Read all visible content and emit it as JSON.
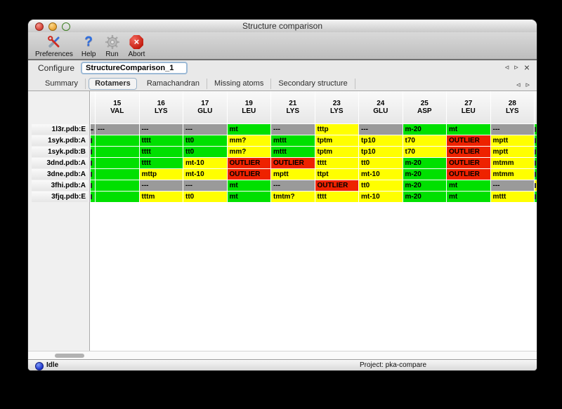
{
  "window": {
    "title": "Structure comparison"
  },
  "toolbar": {
    "items": [
      {
        "label": "Preferences",
        "icon": "tools-icon"
      },
      {
        "label": "Help",
        "icon": "help-icon"
      },
      {
        "label": "Run",
        "icon": "gear-icon"
      },
      {
        "label": "Abort",
        "icon": "abort-icon"
      }
    ]
  },
  "icons": {
    "help": "?",
    "abort_x": "×",
    "prev": "◃",
    "next": "▹",
    "close": "×"
  },
  "configure": {
    "label": "Configure",
    "value": "StructureComparison_1"
  },
  "tabs": {
    "items": [
      {
        "label": "Summary",
        "selected": false
      },
      {
        "label": "Rotamers",
        "selected": true
      },
      {
        "label": "Ramachandran",
        "selected": false
      },
      {
        "label": "Missing atoms",
        "selected": false
      },
      {
        "label": "Secondary structure",
        "selected": false
      }
    ]
  },
  "colors": {
    "green": "#00e000",
    "yellow": "#ffff00",
    "red": "#ee2200",
    "gray": "#9a9a9a"
  },
  "table": {
    "columns": [
      {
        "num": "15",
        "res": "VAL"
      },
      {
        "num": "16",
        "res": "LYS"
      },
      {
        "num": "17",
        "res": "GLU"
      },
      {
        "num": "19",
        "res": "LEU"
      },
      {
        "num": "21",
        "res": "LYS"
      },
      {
        "num": "23",
        "res": "LYS"
      },
      {
        "num": "24",
        "res": "GLU"
      },
      {
        "num": "25",
        "res": "ASP"
      },
      {
        "num": "27",
        "res": "LEU"
      },
      {
        "num": "28",
        "res": "LYS"
      }
    ],
    "rows": [
      {
        "label": "1l3r.pdb:E",
        "left_clip": "gray",
        "right_clip": "green",
        "cells": [
          {
            "v": "---",
            "c": "gray"
          },
          {
            "v": "---",
            "c": "gray"
          },
          {
            "v": "---",
            "c": "gray"
          },
          {
            "v": "mt",
            "c": "green"
          },
          {
            "v": "---",
            "c": "gray"
          },
          {
            "v": "tttp",
            "c": "yellow"
          },
          {
            "v": "---",
            "c": "gray"
          },
          {
            "v": "m-20",
            "c": "green"
          },
          {
            "v": "mt",
            "c": "green"
          },
          {
            "v": "---",
            "c": "gray"
          }
        ]
      },
      {
        "label": "1syk.pdb:A",
        "left_clip": "green",
        "right_clip": "green",
        "cells": [
          {
            "v": "",
            "c": "green"
          },
          {
            "v": "tttt",
            "c": "green"
          },
          {
            "v": "tt0",
            "c": "green"
          },
          {
            "v": "mm?",
            "c": "yellow"
          },
          {
            "v": "mttt",
            "c": "green"
          },
          {
            "v": "tptm",
            "c": "yellow"
          },
          {
            "v": "tp10",
            "c": "yellow"
          },
          {
            "v": "t70",
            "c": "yellow"
          },
          {
            "v": "OUTLIER",
            "c": "red"
          },
          {
            "v": "mptt",
            "c": "yellow"
          }
        ]
      },
      {
        "label": "1syk.pdb:B",
        "left_clip": "green",
        "right_clip": "green",
        "cells": [
          {
            "v": "",
            "c": "green"
          },
          {
            "v": "tttt",
            "c": "green"
          },
          {
            "v": "tt0",
            "c": "green"
          },
          {
            "v": "mm?",
            "c": "yellow"
          },
          {
            "v": "mttt",
            "c": "green"
          },
          {
            "v": "tptm",
            "c": "yellow"
          },
          {
            "v": "tp10",
            "c": "yellow"
          },
          {
            "v": "t70",
            "c": "yellow"
          },
          {
            "v": "OUTLIER",
            "c": "red"
          },
          {
            "v": "mptt",
            "c": "yellow"
          }
        ]
      },
      {
        "label": "3dnd.pdb:A",
        "left_clip": "green",
        "right_clip": "green",
        "cells": [
          {
            "v": "",
            "c": "green"
          },
          {
            "v": "tttt",
            "c": "green"
          },
          {
            "v": "mt-10",
            "c": "yellow"
          },
          {
            "v": "OUTLIER",
            "c": "red"
          },
          {
            "v": "OUTLIER",
            "c": "red"
          },
          {
            "v": "tttt",
            "c": "yellow"
          },
          {
            "v": "tt0",
            "c": "yellow"
          },
          {
            "v": "m-20",
            "c": "green"
          },
          {
            "v": "OUTLIER",
            "c": "red"
          },
          {
            "v": "mtmm",
            "c": "yellow"
          }
        ]
      },
      {
        "label": "3dne.pdb:A",
        "left_clip": "green",
        "right_clip": "green",
        "cells": [
          {
            "v": "",
            "c": "green"
          },
          {
            "v": "mttp",
            "c": "yellow"
          },
          {
            "v": "mt-10",
            "c": "yellow"
          },
          {
            "v": "OUTLIER",
            "c": "red"
          },
          {
            "v": "mptt",
            "c": "yellow"
          },
          {
            "v": "ttpt",
            "c": "yellow"
          },
          {
            "v": "mt-10",
            "c": "yellow"
          },
          {
            "v": "m-20",
            "c": "green"
          },
          {
            "v": "OUTLIER",
            "c": "red"
          },
          {
            "v": "mtmm",
            "c": "yellow"
          }
        ]
      },
      {
        "label": "3fhi.pdb:A",
        "left_clip": "green",
        "right_clip": "yellow",
        "cells": [
          {
            "v": "",
            "c": "green"
          },
          {
            "v": "---",
            "c": "gray"
          },
          {
            "v": "---",
            "c": "gray"
          },
          {
            "v": "mt",
            "c": "green"
          },
          {
            "v": "---",
            "c": "gray"
          },
          {
            "v": "OUTLIER",
            "c": "red"
          },
          {
            "v": "tt0",
            "c": "yellow"
          },
          {
            "v": "m-20",
            "c": "green"
          },
          {
            "v": "mt",
            "c": "green"
          },
          {
            "v": "---",
            "c": "gray"
          }
        ]
      },
      {
        "label": "3fjq.pdb:E",
        "left_clip": "green",
        "right_clip": "green",
        "cells": [
          {
            "v": "",
            "c": "green"
          },
          {
            "v": "tttm",
            "c": "yellow"
          },
          {
            "v": "tt0",
            "c": "yellow"
          },
          {
            "v": "mt",
            "c": "green"
          },
          {
            "v": "tmtm?",
            "c": "yellow"
          },
          {
            "v": "tttt",
            "c": "yellow"
          },
          {
            "v": "mt-10",
            "c": "yellow"
          },
          {
            "v": "m-20",
            "c": "green"
          },
          {
            "v": "mt",
            "c": "green"
          },
          {
            "v": "mttt",
            "c": "yellow"
          }
        ]
      }
    ]
  },
  "statusbar": {
    "left": "Idle",
    "right": "Project: pka-compare"
  }
}
